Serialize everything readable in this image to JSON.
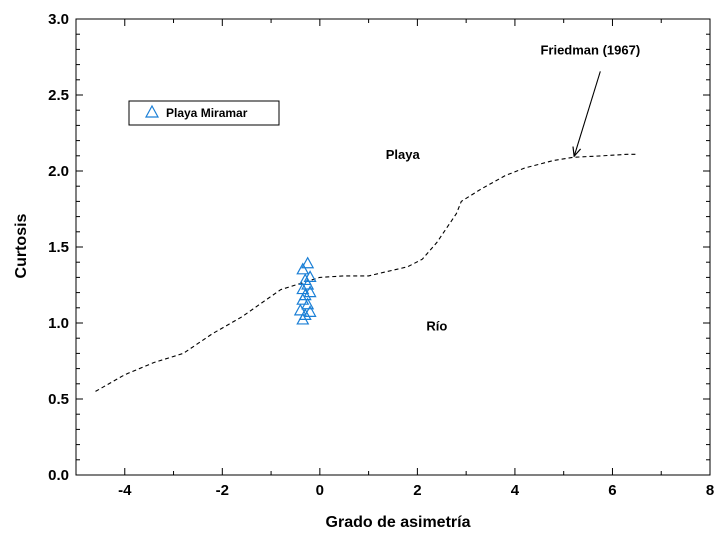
{
  "chart_data": {
    "type": "scatter",
    "xlabel": "Grado de asimetría",
    "ylabel": "Curtosis",
    "xlim": [
      -5,
      8
    ],
    "ylim": [
      0,
      3
    ],
    "xticks": [
      -4,
      -2,
      0,
      2,
      4,
      6,
      8
    ],
    "yticks": [
      0.0,
      0.5,
      1.0,
      1.5,
      2.0,
      2.5,
      3.0
    ],
    "xtick_labels": [
      "-4",
      "-2",
      "0",
      "2",
      "4",
      "6",
      "8"
    ],
    "ytick_labels": [
      "0.0",
      "0.5",
      "1.0",
      "1.5",
      "2.0",
      "2.5",
      "3.0"
    ],
    "grid": false,
    "legend": {
      "position": "upper-left",
      "entries": [
        "Playa Miramar"
      ]
    },
    "series": [
      {
        "name": "Playa Miramar",
        "marker": "triangle-open",
        "color": "#1a7fd6",
        "points": [
          {
            "x": -0.35,
            "y": 1.02
          },
          {
            "x": -0.3,
            "y": 1.05
          },
          {
            "x": -0.2,
            "y": 1.07
          },
          {
            "x": -0.4,
            "y": 1.08
          },
          {
            "x": -0.25,
            "y": 1.12
          },
          {
            "x": -0.35,
            "y": 1.15
          },
          {
            "x": -0.3,
            "y": 1.18
          },
          {
            "x": -0.2,
            "y": 1.2
          },
          {
            "x": -0.35,
            "y": 1.22
          },
          {
            "x": -0.25,
            "y": 1.25
          },
          {
            "x": -0.3,
            "y": 1.28
          },
          {
            "x": -0.2,
            "y": 1.3
          },
          {
            "x": -0.35,
            "y": 1.35
          },
          {
            "x": -0.25,
            "y": 1.39
          }
        ]
      }
    ],
    "boundary_line": {
      "style": "dashed",
      "color": "#000000",
      "points": [
        {
          "x": -4.6,
          "y": 0.55
        },
        {
          "x": -4.0,
          "y": 0.66
        },
        {
          "x": -3.4,
          "y": 0.74
        },
        {
          "x": -2.8,
          "y": 0.8
        },
        {
          "x": -2.2,
          "y": 0.93
        },
        {
          "x": -1.6,
          "y": 1.04
        },
        {
          "x": -1.2,
          "y": 1.13
        },
        {
          "x": -0.8,
          "y": 1.22
        },
        {
          "x": -0.4,
          "y": 1.26
        },
        {
          "x": 0.0,
          "y": 1.3
        },
        {
          "x": 0.5,
          "y": 1.31
        },
        {
          "x": 1.0,
          "y": 1.31
        },
        {
          "x": 1.4,
          "y": 1.34
        },
        {
          "x": 1.8,
          "y": 1.37
        },
        {
          "x": 2.1,
          "y": 1.42
        },
        {
          "x": 2.4,
          "y": 1.53
        },
        {
          "x": 2.8,
          "y": 1.72
        },
        {
          "x": 2.9,
          "y": 1.8
        },
        {
          "x": 3.3,
          "y": 1.88
        },
        {
          "x": 3.8,
          "y": 1.97
        },
        {
          "x": 4.2,
          "y": 2.02
        },
        {
          "x": 4.8,
          "y": 2.07
        },
        {
          "x": 5.2,
          "y": 2.09
        },
        {
          "x": 5.8,
          "y": 2.1
        },
        {
          "x": 6.3,
          "y": 2.11
        },
        {
          "x": 6.5,
          "y": 2.11
        }
      ]
    },
    "annotations": [
      {
        "text": "Playa",
        "x": 1.7,
        "y": 2.08
      },
      {
        "text": "Río",
        "x": 2.4,
        "y": 0.95
      },
      {
        "text": "Friedman (1967)",
        "x": 5.3,
        "y": 2.8,
        "arrow_to": {
          "x": 5.2,
          "y": 2.09
        }
      }
    ]
  }
}
